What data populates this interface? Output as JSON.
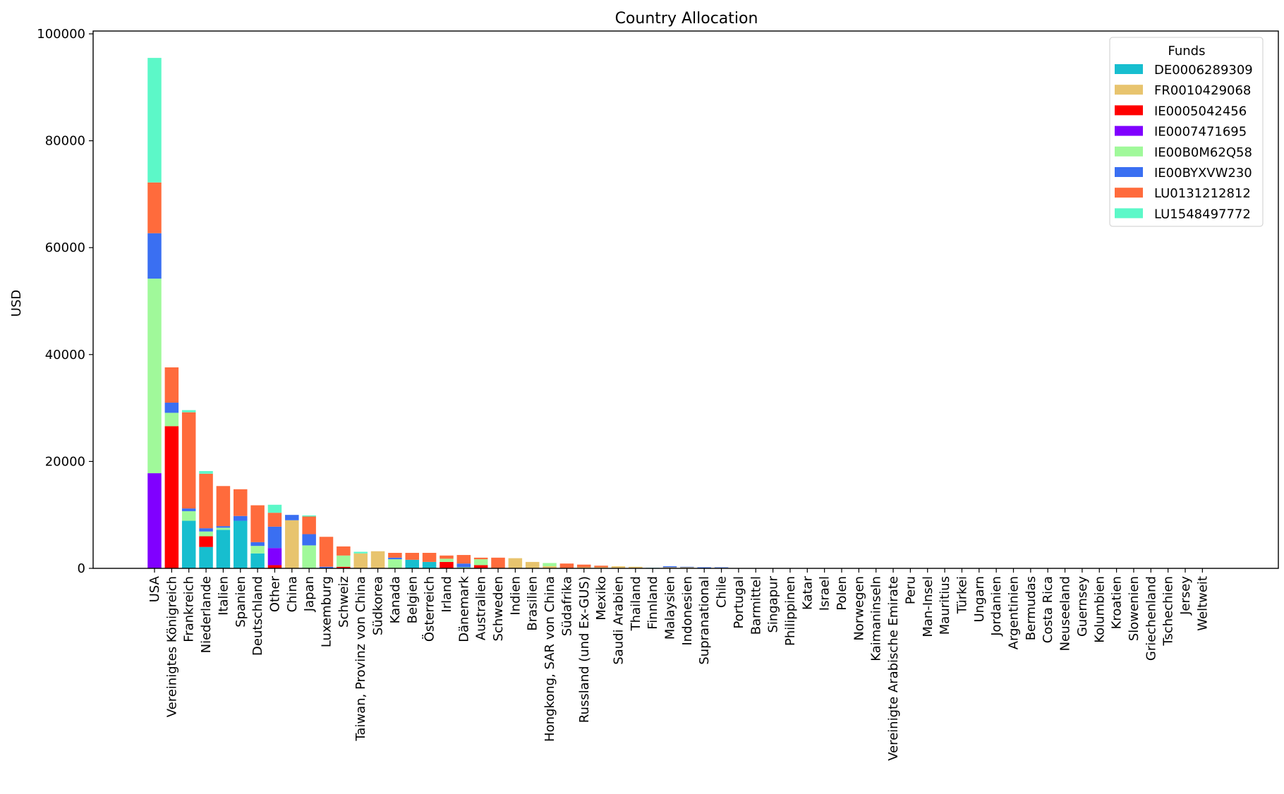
{
  "chart_data": {
    "type": "bar",
    "stacked": true,
    "title": "Country Allocation",
    "xlabel": "",
    "ylabel": "USD",
    "ylim": [
      0,
      100000
    ],
    "yticks": [
      0,
      20000,
      40000,
      60000,
      80000,
      100000
    ],
    "grid": false,
    "legend": {
      "title": "Funds",
      "placement": "top-right"
    },
    "categories": [
      "USA",
      "Vereinigtes Königreich",
      "Frankreich",
      "Niederlande",
      "Italien",
      "Spanien",
      "Deutschland",
      "Other",
      "China",
      "Japan",
      "Luxemburg",
      "Schweiz",
      "Taiwan, Provinz von China",
      "Südkorea",
      "Kanada",
      "Belgien",
      "Österreich",
      "Irland",
      "Dänemark",
      "Australien",
      "Schweden",
      "Indien",
      "Brasilien",
      "Hongkong, SAR von China",
      "Südafrika",
      "Russland (und Ex-GUS)",
      "Mexiko",
      "Saudi Arabien",
      "Thailand",
      "Finnland",
      "Malaysien",
      "Indonesien",
      "Supranational",
      "Chile",
      "Portugal",
      "Barmittel",
      "Singapur",
      "Philippinen",
      "Katar",
      "Israel",
      "Polen",
      "Norwegen",
      "Kaimaninseln",
      "Vereinigte Arabische Emirate",
      "Peru",
      "Man-Insel",
      "Mauritius",
      "Türkei",
      "Ungarn",
      "Jordanien",
      "Argentinien",
      "Bermudas",
      "Costa Rica",
      "Neuseeland",
      "Guernsey",
      "Kolumbien",
      "Kroatien",
      "Slowenien",
      "Griechenland",
      "Tschechien",
      "Jersey",
      "Weltweit"
    ],
    "series": [
      {
        "name": "DE0006289309",
        "color": "#17becf",
        "values": [
          0,
          0,
          8900,
          4000,
          7200,
          8900,
          2800,
          0,
          0,
          0,
          0,
          0,
          0,
          0,
          0,
          1600,
          1200,
          0,
          0,
          0,
          0,
          0,
          0,
          0,
          0,
          0,
          0,
          0,
          0,
          100,
          0,
          0,
          0,
          0,
          0,
          0,
          0,
          0,
          0,
          0,
          0,
          0,
          0,
          0,
          0,
          0,
          0,
          0,
          0,
          0,
          0,
          0,
          0,
          0,
          0,
          0,
          0,
          0,
          0,
          0,
          0,
          0
        ]
      },
      {
        "name": "FR0010429068",
        "color": "#e8c46e",
        "values": [
          0,
          0,
          0,
          0,
          0,
          0,
          0,
          0,
          9000,
          0,
          0,
          0,
          2800,
          3200,
          0,
          0,
          0,
          0,
          0,
          0,
          0,
          1900,
          1200,
          400,
          0,
          200,
          200,
          400,
          300,
          0,
          200,
          200,
          0,
          100,
          0,
          0,
          0,
          0,
          0,
          0,
          0,
          0,
          0,
          0,
          0,
          0,
          0,
          0,
          0,
          0,
          0,
          0,
          0,
          0,
          0,
          0,
          0,
          0,
          0,
          0,
          0,
          0
        ]
      },
      {
        "name": "IE0005042456",
        "color": "#ff0000",
        "values": [
          0,
          26600,
          0,
          2000,
          0,
          0,
          0,
          600,
          0,
          0,
          0,
          300,
          0,
          0,
          0,
          0,
          0,
          1200,
          0,
          600,
          0,
          0,
          0,
          0,
          0,
          0,
          0,
          0,
          0,
          0,
          0,
          0,
          0,
          0,
          0,
          0,
          0,
          0,
          0,
          0,
          0,
          0,
          0,
          0,
          0,
          0,
          0,
          0,
          0,
          0,
          0,
          0,
          0,
          0,
          0,
          0,
          0,
          0,
          0,
          0,
          0,
          0
        ]
      },
      {
        "name": "IE0007471695",
        "color": "#8000ff",
        "values": [
          17800,
          0,
          0,
          0,
          0,
          0,
          0,
          3200,
          0,
          0,
          0,
          0,
          0,
          0,
          0,
          0,
          0,
          0,
          0,
          0,
          0,
          0,
          0,
          0,
          0,
          0,
          0,
          0,
          0,
          0,
          0,
          0,
          0,
          0,
          0,
          0,
          0,
          0,
          0,
          0,
          0,
          0,
          0,
          0,
          0,
          0,
          0,
          0,
          0,
          0,
          0,
          0,
          0,
          0,
          0,
          0,
          0,
          0,
          0,
          0,
          0,
          0
        ]
      },
      {
        "name": "IE00B0M62Q58",
        "color": "#a0f99a",
        "values": [
          36400,
          2500,
          1800,
          900,
          400,
          0,
          1400,
          0,
          0,
          4300,
          0,
          2100,
          0,
          0,
          1700,
          0,
          0,
          600,
          200,
          1100,
          0,
          0,
          0,
          600,
          0,
          0,
          0,
          0,
          0,
          0,
          0,
          0,
          0,
          0,
          0,
          0,
          0,
          0,
          0,
          0,
          0,
          0,
          0,
          0,
          0,
          0,
          0,
          0,
          0,
          0,
          0,
          0,
          0,
          0,
          0,
          0,
          0,
          0,
          0,
          0,
          0,
          0
        ]
      },
      {
        "name": "IE00BYXVW230",
        "color": "#3a6ff2",
        "values": [
          8500,
          1900,
          500,
          600,
          300,
          900,
          700,
          4000,
          1000,
          2100,
          300,
          0,
          0,
          0,
          300,
          0,
          0,
          0,
          700,
          0,
          0,
          0,
          0,
          0,
          0,
          0,
          0,
          0,
          0,
          0,
          200,
          100,
          200,
          100,
          0,
          0,
          0,
          0,
          0,
          0,
          0,
          0,
          0,
          0,
          0,
          0,
          0,
          0,
          0,
          0,
          0,
          0,
          0,
          0,
          0,
          0,
          0,
          0,
          0,
          0,
          0,
          0
        ]
      },
      {
        "name": "LU0131212812",
        "color": "#ff6b3c",
        "values": [
          9500,
          6600,
          18000,
          10200,
          7500,
          5000,
          6900,
          2600,
          0,
          3300,
          5600,
          1700,
          0,
          0,
          900,
          1300,
          1700,
          600,
          1600,
          300,
          2000,
          0,
          0,
          0,
          900,
          500,
          300,
          0,
          0,
          0,
          0,
          0,
          0,
          0,
          0,
          0,
          0,
          0,
          0,
          0,
          0,
          0,
          0,
          0,
          0,
          0,
          0,
          0,
          0,
          0,
          0,
          0,
          0,
          0,
          0,
          0,
          0,
          0,
          0,
          0,
          0,
          0
        ]
      },
      {
        "name": "LU1548497772",
        "color": "#5cf8c8",
        "values": [
          23300,
          0,
          400,
          500,
          0,
          0,
          0,
          1500,
          0,
          200,
          0,
          0,
          300,
          0,
          0,
          0,
          0,
          0,
          0,
          0,
          0,
          0,
          0,
          0,
          0,
          0,
          0,
          0,
          0,
          0,
          0,
          0,
          0,
          0,
          0,
          0,
          0,
          0,
          0,
          0,
          0,
          0,
          0,
          0,
          0,
          0,
          0,
          0,
          0,
          0,
          0,
          0,
          0,
          0,
          0,
          0,
          0,
          0,
          0,
          0,
          0,
          0
        ]
      }
    ]
  }
}
